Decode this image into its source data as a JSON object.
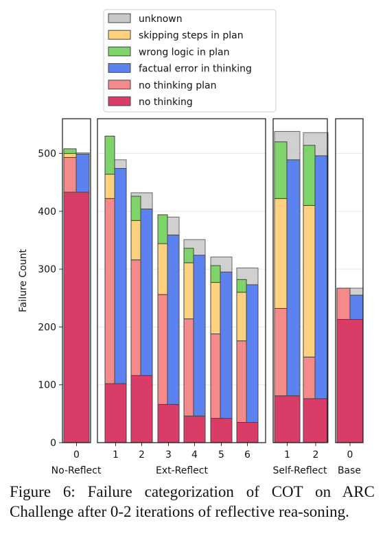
{
  "chart_data": {
    "type": "bar",
    "stacked": true,
    "ylabel": "Failure Count",
    "ylim": [
      0,
      560
    ],
    "yticks": [
      0,
      100,
      200,
      300,
      400,
      500
    ],
    "grid": true,
    "legend_position": "top-center",
    "legend": [
      {
        "key": "unknown",
        "label": "unknown",
        "color": "#c8c8c8"
      },
      {
        "key": "skip",
        "label": "skipping steps in plan",
        "color": "#fdd17d"
      },
      {
        "key": "wrong",
        "label": "wrong logic in plan",
        "color": "#7ed36b"
      },
      {
        "key": "fact",
        "label": "factual error in thinking",
        "color": "#5b82ef"
      },
      {
        "key": "noplan",
        "label": "no thinking plan",
        "color": "#f48a8a"
      },
      {
        "key": "noth",
        "label": "no thinking",
        "color": "#d93d67"
      }
    ],
    "groups": [
      {
        "name": "No-Reflect",
        "bars": [
          {
            "x": "0",
            "noth": 433,
            "noplan": 60,
            "skip": 7,
            "wrong": 8,
            "fact": 66,
            "total": 501
          }
        ]
      },
      {
        "name": "Ext-Reflect",
        "bars": [
          {
            "x": "1",
            "noth": 102,
            "noplan": 320,
            "skip": 42,
            "wrong": 66,
            "fact": 372,
            "total": 489
          },
          {
            "x": "2",
            "noth": 116,
            "noplan": 200,
            "skip": 68,
            "wrong": 42,
            "fact": 288,
            "total": 432
          },
          {
            "x": "3",
            "noth": 66,
            "noplan": 190,
            "skip": 88,
            "wrong": 50,
            "fact": 293,
            "total": 390
          },
          {
            "x": "4",
            "noth": 46,
            "noplan": 168,
            "skip": 97,
            "wrong": 25,
            "fact": 278,
            "total": 351
          },
          {
            "x": "5",
            "noth": 42,
            "noplan": 146,
            "skip": 89,
            "wrong": 29,
            "fact": 253,
            "total": 321
          },
          {
            "x": "6",
            "noth": 35,
            "noplan": 141,
            "skip": 84,
            "wrong": 22,
            "fact": 238,
            "total": 302
          }
        ]
      },
      {
        "name": "Self-Reflect",
        "bars": [
          {
            "x": "1",
            "noth": 81,
            "noplan": 151,
            "skip": 190,
            "wrong": 98,
            "fact": 408,
            "total": 538
          },
          {
            "x": "2",
            "noth": 76,
            "noplan": 72,
            "skip": 262,
            "wrong": 104,
            "fact": 420,
            "total": 536
          }
        ]
      },
      {
        "name": "Base",
        "bars": [
          {
            "x": "0",
            "noth": 213,
            "noplan": 54,
            "skip": 0,
            "wrong": 0,
            "fact": 42,
            "total": 267
          }
        ]
      }
    ]
  },
  "caption": "Figure 6: Failure categorization of COT on ARC Challenge after 0-2 iterations of reflective rea-­soning."
}
